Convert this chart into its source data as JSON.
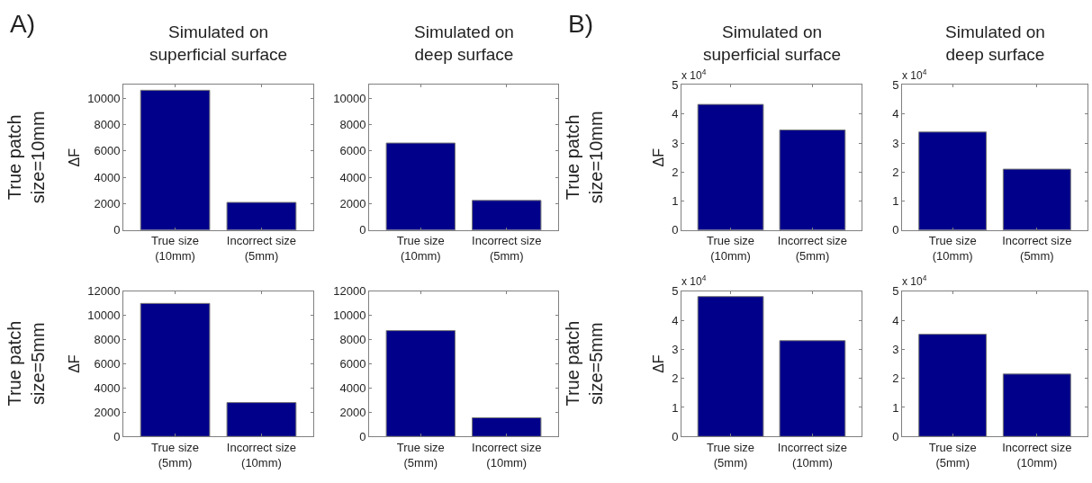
{
  "chart_data": [
    {
      "type": "bar",
      "title": "Simulated on\nsuperficial surface",
      "ylabel": "ΔF",
      "annotations": [
        "A)",
        "True patch\nsize=10mm"
      ],
      "categories": [
        "True size\n(10mm)",
        "Incorrect size\n(5mm)"
      ],
      "values": [
        10600,
        2100
      ],
      "color": "#00008b",
      "ylim": [
        0,
        11000
      ],
      "yticks": [
        0,
        2000,
        4000,
        6000,
        8000,
        10000
      ]
    },
    {
      "type": "bar",
      "title": "Simulated on\ndeep surface",
      "categories": [
        "True size\n(10mm)",
        "Incorrect size\n(5mm)"
      ],
      "values": [
        6600,
        2250
      ],
      "color": "#00008b",
      "ylim": [
        0,
        11000
      ],
      "yticks": [
        0,
        2000,
        4000,
        6000,
        8000,
        10000
      ]
    },
    {
      "type": "bar",
      "ylabel": "ΔF",
      "annotations": [
        "True patch\nsize=5mm"
      ],
      "categories": [
        "True size\n(5mm)",
        "Incorrect size\n(10mm)"
      ],
      "values": [
        11000,
        2800
      ],
      "color": "#00008b",
      "ylim": [
        0,
        12000
      ],
      "yticks": [
        0,
        2000,
        4000,
        6000,
        8000,
        10000,
        12000
      ]
    },
    {
      "type": "bar",
      "categories": [
        "True size\n(5mm)",
        "Incorrect size\n(10mm)"
      ],
      "values": [
        8750,
        1550
      ],
      "color": "#00008b",
      "ylim": [
        0,
        12000
      ],
      "yticks": [
        0,
        2000,
        4000,
        6000,
        8000,
        10000,
        12000
      ]
    },
    {
      "type": "bar",
      "title": "Simulated on\nsuperficial surface",
      "ylabel": "ΔF",
      "annotations": [
        "B)",
        "True patch\nsize=10mm",
        "x 10$^{4}$"
      ],
      "categories": [
        "True size\n(10mm)",
        "Incorrect size\n(5mm)"
      ],
      "values": [
        4.33,
        3.45
      ],
      "color": "#00008b",
      "ylim": [
        0,
        5
      ],
      "yticks": [
        0,
        1,
        2,
        3,
        4,
        5
      ]
    },
    {
      "type": "bar",
      "title": "Simulated on\ndeep surface",
      "annotations": [
        "x 10$^{4}$"
      ],
      "categories": [
        "True size\n(10mm)",
        "Incorrect size\n(5mm)"
      ],
      "values": [
        3.38,
        2.1
      ],
      "color": "#00008b",
      "ylim": [
        0,
        5
      ],
      "yticks": [
        0,
        1,
        2,
        3,
        4,
        5
      ]
    },
    {
      "type": "bar",
      "ylabel": "ΔF",
      "annotations": [
        "True patch\nsize=5mm",
        "x 10$^{4}$"
      ],
      "categories": [
        "True size\n(5mm)",
        "Incorrect size\n(10mm)"
      ],
      "values": [
        4.82,
        3.3
      ],
      "color": "#00008b",
      "ylim": [
        0,
        5
      ],
      "yticks": [
        0,
        1,
        2,
        3,
        4,
        5
      ]
    },
    {
      "type": "bar",
      "annotations": [
        "x 10$^{4}$"
      ],
      "categories": [
        "True size\n(5mm)",
        "Incorrect size\n(10mm)"
      ],
      "values": [
        3.52,
        2.15
      ],
      "color": "#00008b",
      "ylim": [
        0,
        5
      ],
      "yticks": [
        0,
        1,
        2,
        3,
        4,
        5
      ]
    }
  ]
}
